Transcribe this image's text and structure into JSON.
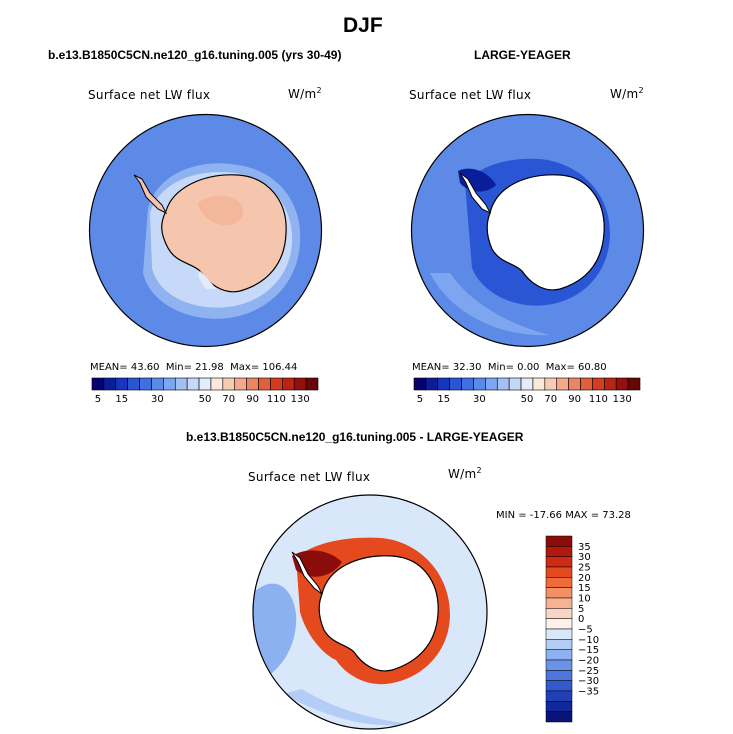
{
  "title": "DJF",
  "panels": [
    {
      "id": "model",
      "title": "b.e13.B1850C5CN.ne120_g16.tuning.005 (yrs 30-49)",
      "field": "Surface net LW flux",
      "units_base": "W/m",
      "units_exp": "2",
      "stats": {
        "mean_label": "MEAN=",
        "mean": "43.60",
        "min_label": "Min=",
        "min": "21.98",
        "max_label": "Max=",
        "max": "106.44"
      }
    },
    {
      "id": "obs",
      "title": "LARGE-YEAGER",
      "field": "Surface net LW flux",
      "units_base": "W/m",
      "units_exp": "2",
      "stats": {
        "mean_label": "MEAN=",
        "mean": "32.30",
        "min_label": "Min=",
        "min": "0.00",
        "max_label": "Max=",
        "max": "60.80"
      }
    },
    {
      "id": "diff",
      "title": "b.e13.B1850C5CN.ne120_g16.tuning.005 - LARGE-YEAGER",
      "field": "Surface net LW flux",
      "units_base": "W/m",
      "units_exp": "2",
      "stats_text": "MIN = -17.66 MAX =  73.28"
    }
  ],
  "chart_data": [
    {
      "type": "heatmap",
      "projection": "south-polar-stereographic",
      "title": "b.e13.B1850C5CN.ne120_g16.tuning.005 (yrs 30-49)",
      "field": "Surface net LW flux",
      "units": "W/m2",
      "colorbar_levels": [
        5,
        10,
        15,
        20,
        25,
        30,
        35,
        40,
        45,
        50,
        55,
        60,
        70,
        80,
        90,
        100,
        110,
        120,
        130
      ],
      "colorbar_tick_labels": [
        "5",
        "15",
        "30",
        "50",
        "70",
        "90",
        "110",
        "130"
      ],
      "colorbar_colors": [
        "#08026e",
        "#0b1e9a",
        "#1736bd",
        "#2a55d4",
        "#3f6fe0",
        "#5b8be8",
        "#7ea5ef",
        "#a3c0f4",
        "#c6d8f8",
        "#e3ecfb",
        "#fbe7dc",
        "#f8cbb4",
        "#f3a98a",
        "#ec8563",
        "#e25f3e",
        "#d23d22",
        "#b92414",
        "#94110b",
        "#6a0606"
      ],
      "mean": 43.6,
      "min": 21.98,
      "max": 106.44
    },
    {
      "type": "heatmap",
      "projection": "south-polar-stereographic",
      "title": "LARGE-YEAGER",
      "field": "Surface net LW flux",
      "units": "W/m2",
      "colorbar_levels": [
        5,
        10,
        15,
        20,
        25,
        30,
        35,
        40,
        45,
        50,
        55,
        60,
        70,
        80,
        90,
        100,
        110,
        120,
        130
      ],
      "colorbar_tick_labels": [
        "5",
        "15",
        "30",
        "50",
        "70",
        "90",
        "110",
        "130"
      ],
      "colorbar_colors": [
        "#08026e",
        "#0b1e9a",
        "#1736bd",
        "#2a55d4",
        "#3f6fe0",
        "#5b8be8",
        "#7ea5ef",
        "#a3c0f4",
        "#c6d8f8",
        "#e3ecfb",
        "#fbe7dc",
        "#f8cbb4",
        "#f3a98a",
        "#ec8563",
        "#e25f3e",
        "#d23d22",
        "#b92414",
        "#94110b",
        "#6a0606"
      ],
      "mean": 32.3,
      "min": 0.0,
      "max": 60.8
    },
    {
      "type": "heatmap",
      "projection": "south-polar-stereographic",
      "title": "b.e13.B1850C5CN.ne120_g16.tuning.005 - LARGE-YEAGER",
      "field": "Surface net LW flux",
      "units": "W/m2",
      "colorbar_levels": [
        "35",
        "30",
        "25",
        "20",
        "15",
        "10",
        "5",
        "0",
        "-5",
        "-10",
        "-15",
        "-20",
        "-25",
        "-30",
        "-35"
      ],
      "colorbar_colors": [
        "#8b0d0b",
        "#b2180e",
        "#d12a12",
        "#e54a1f",
        "#ee6c3a",
        "#f39065",
        "#f7b294",
        "#fbd5c4",
        "#fdf1ea",
        "#d9e7fb",
        "#b3cdf6",
        "#8cb1f0",
        "#6a93e8",
        "#4d76dd",
        "#3259cf",
        "#2140b7",
        "#11289a",
        "#081479"
      ],
      "min": -17.66,
      "max": 73.28
    }
  ],
  "colors": {
    "ocean_mid": "#5d8ae6",
    "ocean_light": "#a9c5f4",
    "land_peach": "#f6c5ae",
    "ice_white": "#ffffff",
    "diff_red": "#c8250f"
  }
}
